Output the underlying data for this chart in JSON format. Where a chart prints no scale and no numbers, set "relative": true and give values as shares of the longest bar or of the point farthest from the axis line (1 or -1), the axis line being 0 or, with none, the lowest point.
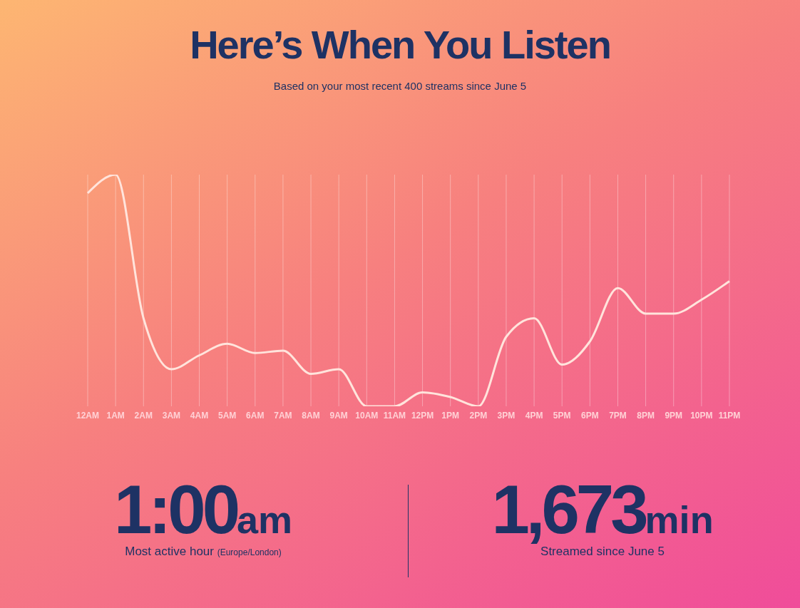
{
  "chart_data": {
    "type": "line",
    "title": "Here’s When You Listen",
    "subtitle": "Based on your most recent 400 streams since June 5",
    "categories": [
      "12AM",
      "1AM",
      "2AM",
      "3AM",
      "4AM",
      "5AM",
      "6AM",
      "7AM",
      "8AM",
      "9AM",
      "10AM",
      "11AM",
      "12PM",
      "1PM",
      "2PM",
      "3PM",
      "4PM",
      "5PM",
      "6PM",
      "7PM",
      "8PM",
      "9PM",
      "10PM",
      "11PM"
    ],
    "series": [
      {
        "color": "#ffe4dc",
        "values": [
          0.92,
          1,
          0.38,
          0.16,
          0.22,
          0.27,
          0.23,
          0.24,
          0.14,
          0.16,
          0,
          0,
          0.06,
          0.04,
          0,
          0.3,
          0.38,
          0.18,
          0.28,
          0.51,
          0.4,
          0.4,
          0.46,
          0.54
        ]
      }
    ],
    "relative": true,
    "grid": "x",
    "marker": "none",
    "line_style": "solid",
    "annotations": [
      "1:00am",
      "Most active hour (Europe/London)",
      "1,673min",
      "Streamed since June 5"
    ]
  }
}
